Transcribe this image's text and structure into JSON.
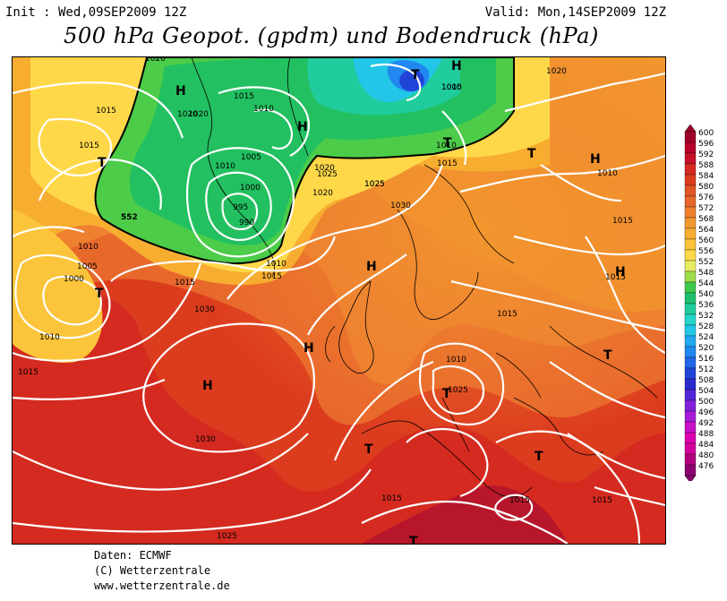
{
  "header": {
    "init": "Init : Wed,09SEP2009 12Z",
    "valid": "Valid: Mon,14SEP2009 12Z",
    "title": "500 hPa Geopot. (gpdm) und Bodendruck (hPa)"
  },
  "footer": {
    "line1": "Daten: ECMWF",
    "line2": "(C) Wetterzentrale",
    "line3": "www.wetterzentrale.de"
  },
  "legend": {
    "levels": [
      "600",
      "596",
      "592",
      "588",
      "584",
      "580",
      "576",
      "572",
      "568",
      "564",
      "560",
      "556",
      "552",
      "548",
      "544",
      "540",
      "536",
      "532",
      "528",
      "524",
      "520",
      "516",
      "512",
      "508",
      "504",
      "500",
      "496",
      "492",
      "488",
      "484",
      "480",
      "476"
    ],
    "colors": [
      "#a0002a",
      "#b8002a",
      "#c8102a",
      "#d42a20",
      "#dc3c1e",
      "#e25426",
      "#e8682c",
      "#ee8030",
      "#f2962e",
      "#f7ad30",
      "#fbc43a",
      "#ffd84a",
      "#e8ec60",
      "#9cdc4a",
      "#3cc84a",
      "#1ec070",
      "#20cc9c",
      "#24d6c8",
      "#22c6e6",
      "#20a8f0",
      "#2088f0",
      "#2066e8",
      "#2044d8",
      "#2a2cd0",
      "#5428d8",
      "#8020dc",
      "#a81ad8",
      "#c810c8",
      "#dc00b0",
      "#d4009c",
      "#b0007e",
      "#8c0070"
    ]
  },
  "centers": [
    "H",
    "H",
    "H",
    "H",
    "H",
    "H",
    "H",
    "H",
    "T",
    "T",
    "T",
    "T",
    "T",
    "T",
    "T",
    "T",
    "T",
    "T",
    "T"
  ],
  "isobars": [
    "1020",
    "1015",
    "1015",
    "1020",
    "1020",
    "1015",
    "1010",
    "1005",
    "1010",
    "1000",
    "995",
    "990",
    "1010",
    "1015",
    "1020",
    "1025",
    "1020",
    "1025",
    "1025",
    "1030",
    "1015",
    "1010",
    "1005",
    "1000",
    "1010",
    "1015",
    "1030",
    "1030",
    "1025",
    "1015",
    "1015",
    "1010",
    "1025",
    "1015",
    "1015",
    "1015",
    "1010",
    "1015",
    "1015",
    "1020",
    "1010",
    "1005",
    "1010",
    "1015"
  ],
  "height_label": "552"
}
